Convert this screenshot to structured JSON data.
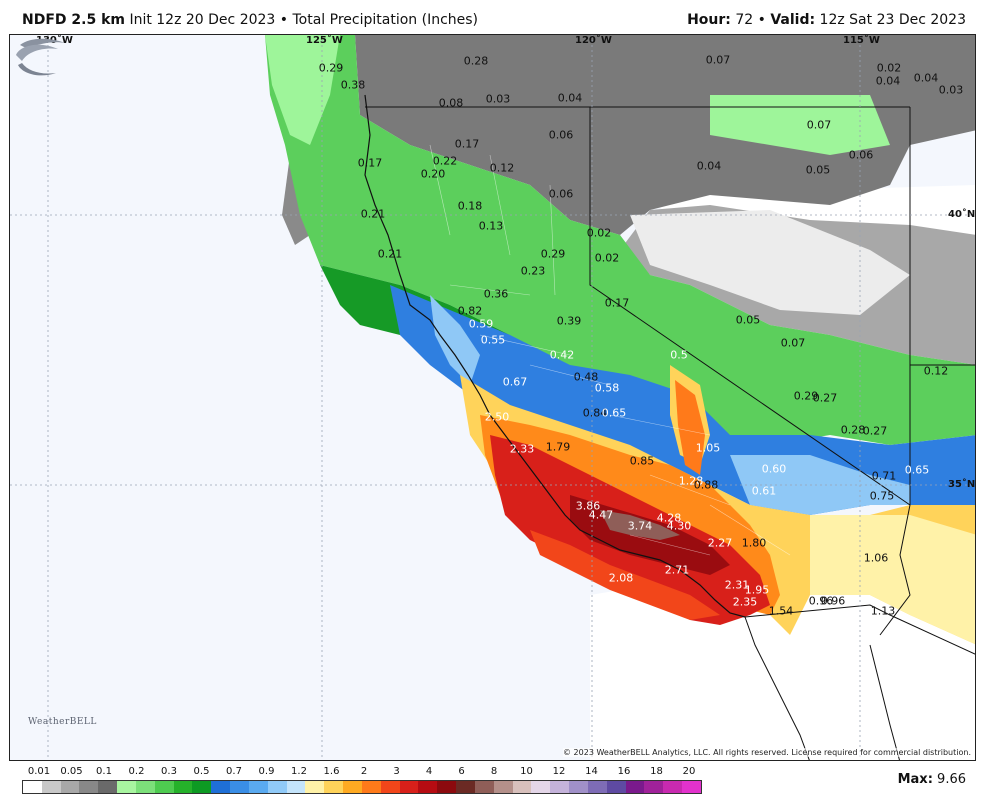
{
  "header": {
    "model": "NDFD 2.5 km",
    "init": "Init 12z 20 Dec 2023",
    "bullet": "•",
    "product": "Total Precipitation (Inches)",
    "hour_label": "Hour:",
    "hour_value": "72",
    "valid_label": "Valid:",
    "valid_value": "12z Sat 23 Dec 2023"
  },
  "graticule": {
    "lon_labels": [
      "130˚W",
      "125˚W",
      "120˚W",
      "115˚W"
    ],
    "lat_labels": [
      "40˚N",
      "35˚N"
    ]
  },
  "values": [
    {
      "t": "0.29",
      "c": "dark"
    },
    {
      "t": "0.38",
      "c": "dark"
    },
    {
      "t": "0.28",
      "c": "dark"
    },
    {
      "t": "0.07",
      "c": "dark"
    },
    {
      "t": "0.02",
      "c": "dark"
    },
    {
      "t": "0.04",
      "c": "dark"
    },
    {
      "t": "0.04",
      "c": "dark"
    },
    {
      "t": "0.03",
      "c": "dark"
    },
    {
      "t": "0.08",
      "c": "dark"
    },
    {
      "t": "0.03",
      "c": "dark"
    },
    {
      "t": "0.04",
      "c": "dark"
    },
    {
      "t": "0.06",
      "c": "dark"
    },
    {
      "t": "0.07",
      "c": "dark"
    },
    {
      "t": "0.17",
      "c": "dark"
    },
    {
      "t": "0.17",
      "c": "dark"
    },
    {
      "t": "0.22",
      "c": "dark"
    },
    {
      "t": "0.20",
      "c": "dark"
    },
    {
      "t": "0.12",
      "c": "dark"
    },
    {
      "t": "0.04",
      "c": "dark"
    },
    {
      "t": "0.06",
      "c": "dark"
    },
    {
      "t": "0.05",
      "c": "dark"
    },
    {
      "t": "0.06",
      "c": "dark"
    },
    {
      "t": "0.18",
      "c": "dark"
    },
    {
      "t": "0.21",
      "c": "dark"
    },
    {
      "t": "0.13",
      "c": "dark"
    },
    {
      "t": "0.02",
      "c": "dark"
    },
    {
      "t": "0.29",
      "c": "dark"
    },
    {
      "t": "0.21",
      "c": "dark"
    },
    {
      "t": "0.02",
      "c": "dark"
    },
    {
      "t": "0.23",
      "c": "dark"
    },
    {
      "t": "0.36",
      "c": "dark"
    },
    {
      "t": "0.17",
      "c": "dark"
    },
    {
      "t": "0.82",
      "c": "dark"
    },
    {
      "t": "0.59",
      "c": "light"
    },
    {
      "t": "0.39",
      "c": "dark"
    },
    {
      "t": "0.05",
      "c": "dark"
    },
    {
      "t": "0.55",
      "c": "light"
    },
    {
      "t": "0.07",
      "c": "dark"
    },
    {
      "t": "0.42",
      "c": "light"
    },
    {
      "t": "0.5",
      "c": "light"
    },
    {
      "t": "0.67",
      "c": "light"
    },
    {
      "t": "0.48",
      "c": "dark"
    },
    {
      "t": "0.58",
      "c": "light"
    },
    {
      "t": "0.12",
      "c": "dark"
    },
    {
      "t": "0.29",
      "c": "dark"
    },
    {
      "t": "0.27",
      "c": "dark"
    },
    {
      "t": "0.84",
      "c": "dark"
    },
    {
      "t": "0.65",
      "c": "light"
    },
    {
      "t": "2.50",
      "c": "light"
    },
    {
      "t": "0.28",
      "c": "dark"
    },
    {
      "t": "0.27",
      "c": "dark"
    },
    {
      "t": "2.33",
      "c": "light"
    },
    {
      "t": "1.79",
      "c": "dark"
    },
    {
      "t": "1.05",
      "c": "light"
    },
    {
      "t": "0.85",
      "c": "dark"
    },
    {
      "t": "0.60",
      "c": "light"
    },
    {
      "t": "0.71",
      "c": "dark"
    },
    {
      "t": "0.65",
      "c": "light"
    },
    {
      "t": "1.28",
      "c": "light"
    },
    {
      "t": "0.88",
      "c": "dark"
    },
    {
      "t": "0.61",
      "c": "light"
    },
    {
      "t": "0.75",
      "c": "dark"
    },
    {
      "t": "3.86",
      "c": "light"
    },
    {
      "t": "4.47",
      "c": "light"
    },
    {
      "t": "4.28",
      "c": "light"
    },
    {
      "t": "3.74",
      "c": "light"
    },
    {
      "t": "4.30",
      "c": "light"
    },
    {
      "t": "2.27",
      "c": "light"
    },
    {
      "t": "1.80",
      "c": "dark"
    },
    {
      "t": "1.06",
      "c": "dark"
    },
    {
      "t": "2.71",
      "c": "light"
    },
    {
      "t": "2.08",
      "c": "light"
    },
    {
      "t": "2.31",
      "c": "light"
    },
    {
      "t": "1.95",
      "c": "light"
    },
    {
      "t": "2.35",
      "c": "light"
    },
    {
      "t": "1.54",
      "c": "dark"
    },
    {
      "t": "0.96",
      "c": "dark"
    },
    {
      "t": "0.96",
      "c": "dark"
    },
    {
      "t": "1.13",
      "c": "dark"
    }
  ],
  "logo": {
    "text": "WeatherBELL"
  },
  "copyright": "© 2023 WeatherBELL Analytics, LLC. All rights reserved. License required for commercial distribution.",
  "legend": {
    "ticks": [
      "0.01",
      "0.05",
      "0.1",
      "0.2",
      "0.3",
      "0.5",
      "0.7",
      "0.9",
      "1.2",
      "1.6",
      "2",
      "3",
      "4",
      "6",
      "8",
      "10",
      "12",
      "14",
      "16",
      "18",
      "20"
    ],
    "colors": [
      "#ffffff",
      "#c8c8c8",
      "#a8a8a8",
      "#888888",
      "#6a6a6a",
      "#a8f5a0",
      "#7ce07a",
      "#4ecb50",
      "#25b12a",
      "#0d9a23",
      "#1f6fd6",
      "#3a8ee6",
      "#5aaaf0",
      "#90caf8",
      "#c4e4fb",
      "#fff2a8",
      "#ffd35a",
      "#ffaa22",
      "#ff7a1a",
      "#f2461a",
      "#d8201a",
      "#b60c12",
      "#8c0a0e",
      "#6b2a24",
      "#8f5e58",
      "#b4908a",
      "#d8c0bc",
      "#e4d6e8",
      "#c4b2da",
      "#a090c8",
      "#7e6cb6",
      "#5e4aa2",
      "#7a1a8c",
      "#a0229a",
      "#c82ab0",
      "#e232cc"
    ],
    "max_label": "Max",
    "max_value": "9.66"
  }
}
